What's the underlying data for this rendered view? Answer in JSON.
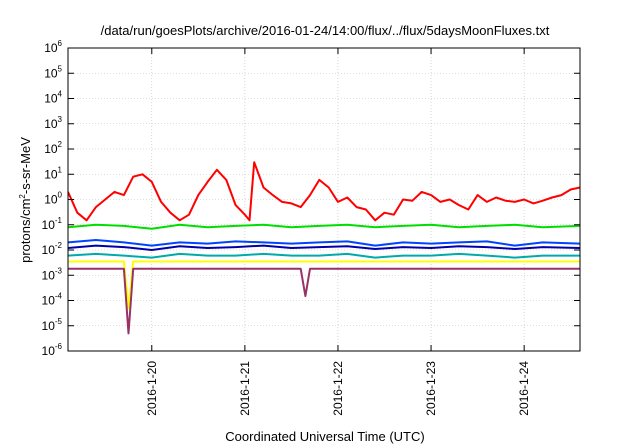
{
  "chart_data": {
    "type": "line",
    "title": "/data/run/goesPlots/archive/2016-01-24/14:00/flux/../flux/5daysMoonFluxes.txt",
    "xlabel": "Coordinated Universal Time (UTC)",
    "ylabel_parts": [
      "protons/cm",
      "2",
      "-s-sr-MeV"
    ],
    "yscale": "log",
    "ylim_exp": [
      -6,
      6
    ],
    "y_tick_exponents": [
      -6,
      -5,
      -4,
      -3,
      -2,
      -1,
      0,
      1,
      2,
      3,
      4,
      5,
      6
    ],
    "xlim_days": [
      -0.9,
      4.6
    ],
    "x_ticks": [
      {
        "day": 0,
        "label": "2016-1-20"
      },
      {
        "day": 1,
        "label": "2016-1-21"
      },
      {
        "day": 2,
        "label": "2016-1-22"
      },
      {
        "day": 3,
        "label": "2016-1-23"
      },
      {
        "day": 4,
        "label": "2016-1-24"
      }
    ],
    "grid": true,
    "legend": "none",
    "series": [
      {
        "color": "#ff0000",
        "x": [
          -0.9,
          -0.8,
          -0.7,
          -0.6,
          -0.5,
          -0.4,
          -0.3,
          -0.2,
          -0.1,
          0.0,
          0.1,
          0.2,
          0.3,
          0.4,
          0.5,
          0.6,
          0.7,
          0.8,
          0.9,
          1.0,
          1.05,
          1.1,
          1.2,
          1.3,
          1.4,
          1.5,
          1.6,
          1.7,
          1.8,
          1.9,
          2.0,
          2.1,
          2.2,
          2.3,
          2.4,
          2.5,
          2.6,
          2.7,
          2.8,
          2.9,
          3.0,
          3.1,
          3.2,
          3.3,
          3.4,
          3.5,
          3.6,
          3.7,
          3.8,
          3.9,
          4.0,
          4.1,
          4.2,
          4.3,
          4.4,
          4.5,
          4.6
        ],
        "y": [
          2,
          0.3,
          0.15,
          0.5,
          1.0,
          2,
          1.5,
          8,
          10,
          5,
          0.8,
          0.3,
          0.15,
          0.25,
          1.5,
          5,
          15,
          6,
          0.6,
          0.25,
          0.15,
          30,
          3,
          1.5,
          0.8,
          0.7,
          0.5,
          1.5,
          6,
          3,
          0.8,
          1.2,
          0.5,
          0.4,
          0.15,
          0.3,
          0.25,
          1,
          0.9,
          2,
          1.5,
          0.8,
          1,
          0.6,
          0.4,
          1.5,
          0.8,
          1.2,
          0.9,
          0.8,
          1,
          0.7,
          0.9,
          1.2,
          1.5,
          2.5,
          3
        ]
      },
      {
        "color": "#00dd00",
        "x": [
          -0.9,
          -0.6,
          -0.3,
          0.0,
          0.3,
          0.6,
          0.9,
          1.2,
          1.5,
          1.8,
          2.1,
          2.4,
          2.7,
          3.0,
          3.3,
          3.6,
          3.9,
          4.2,
          4.6
        ],
        "y": [
          0.08,
          0.1,
          0.09,
          0.07,
          0.1,
          0.08,
          0.09,
          0.1,
          0.08,
          0.09,
          0.1,
          0.08,
          0.09,
          0.1,
          0.08,
          0.09,
          0.1,
          0.08,
          0.09
        ]
      },
      {
        "color": "#0044ff",
        "x": [
          -0.9,
          -0.6,
          -0.3,
          0.0,
          0.3,
          0.6,
          0.9,
          1.2,
          1.5,
          1.8,
          2.1,
          2.4,
          2.7,
          3.0,
          3.3,
          3.6,
          3.9,
          4.2,
          4.6
        ],
        "y": [
          0.02,
          0.025,
          0.02,
          0.015,
          0.02,
          0.018,
          0.022,
          0.02,
          0.018,
          0.02,
          0.022,
          0.015,
          0.02,
          0.018,
          0.02,
          0.022,
          0.015,
          0.02,
          0.018
        ]
      },
      {
        "color": "#0000aa",
        "x": [
          -0.9,
          -0.6,
          -0.3,
          0.0,
          0.3,
          0.6,
          0.9,
          1.2,
          1.5,
          1.8,
          2.1,
          2.4,
          2.7,
          3.0,
          3.3,
          3.6,
          3.9,
          4.2,
          4.6
        ],
        "y": [
          0.012,
          0.015,
          0.013,
          0.01,
          0.014,
          0.012,
          0.013,
          0.015,
          0.012,
          0.013,
          0.014,
          0.011,
          0.013,
          0.012,
          0.014,
          0.013,
          0.011,
          0.013,
          0.012
        ]
      },
      {
        "color": "#00aaaa",
        "x": [
          -0.9,
          -0.6,
          -0.3,
          0.0,
          0.3,
          0.6,
          0.9,
          1.2,
          1.5,
          1.8,
          2.1,
          2.4,
          2.7,
          3.0,
          3.3,
          3.6,
          3.9,
          4.2,
          4.6
        ],
        "y": [
          0.006,
          0.007,
          0.006,
          0.005,
          0.007,
          0.006,
          0.006,
          0.007,
          0.006,
          0.006,
          0.007,
          0.005,
          0.006,
          0.006,
          0.007,
          0.006,
          0.005,
          0.006,
          0.006
        ]
      },
      {
        "color": "#ffff00",
        "x": [
          -0.9,
          -0.6,
          -0.3,
          -0.25,
          -0.2,
          -0.1,
          0.0,
          0.3,
          0.6,
          0.9,
          1.2,
          1.5,
          1.8,
          2.1,
          2.4,
          2.7,
          3.0,
          3.3,
          3.6,
          3.9,
          4.2,
          4.6
        ],
        "y": [
          0.0035,
          0.0035,
          0.0035,
          5e-05,
          0.0035,
          0.0035,
          0.0035,
          0.0035,
          0.0035,
          0.0035,
          0.0035,
          0.0035,
          0.0035,
          0.0035,
          0.0035,
          0.0035,
          0.0035,
          0.0035,
          0.0035,
          0.0035,
          0.0035,
          0.0035
        ]
      },
      {
        "color": "#993366",
        "x": [
          -0.9,
          -0.6,
          -0.3,
          -0.25,
          -0.2,
          -0.1,
          0.0,
          0.3,
          0.6,
          0.9,
          1.2,
          1.5,
          1.6,
          1.65,
          1.7,
          1.8,
          2.1,
          2.4,
          2.7,
          3.0,
          3.3,
          3.6,
          3.9,
          4.2,
          4.6
        ],
        "y": [
          0.0018,
          0.0018,
          0.0018,
          5e-06,
          0.0018,
          0.0018,
          0.0018,
          0.0018,
          0.0018,
          0.0018,
          0.0018,
          0.0018,
          0.0018,
          0.00015,
          0.0018,
          0.0018,
          0.0018,
          0.0018,
          0.0018,
          0.0018,
          0.0018,
          0.0018,
          0.0018,
          0.0018,
          0.0018
        ]
      }
    ]
  }
}
